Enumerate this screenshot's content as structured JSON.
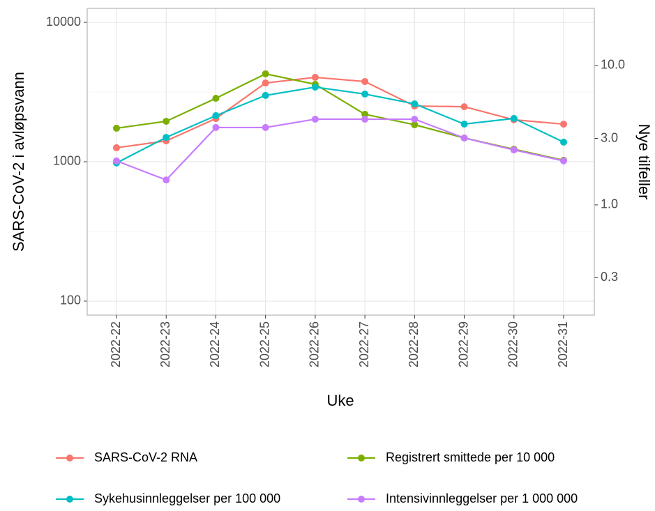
{
  "chart_data": {
    "type": "line",
    "y_label": "SARS-CoV-2 i avløpsvann",
    "y2_label": "Nye tilfeller",
    "x_label": "Uke",
    "categories": [
      "2022-22",
      "2022-23",
      "2022-24",
      "2022-25",
      "2022-26",
      "2022-27",
      "2022-28",
      "2022-29",
      "2022-30",
      "2022-31"
    ],
    "log_scale": true,
    "grid": true,
    "legend_position": "bottom",
    "ylim": [
      79.4,
      12590
    ],
    "yticks": [
      100,
      1000,
      10000
    ],
    "y2lim": [
      0.162,
      25.7
    ],
    "y2ticks": [
      {
        "value": 10,
        "label": "10.0"
      },
      {
        "value": 3,
        "label": "3.0"
      },
      {
        "value": 1,
        "label": "1.0"
      },
      0.3
    ],
    "series": [
      {
        "name": "SARS-CoV-2 RNA",
        "color": "#f8766d",
        "values": [
          1260,
          1410,
          2040,
          3670,
          4030,
          3760,
          2510,
          2480,
          2000,
          1860
        ]
      },
      {
        "name": "Registrert smittede per 10 000",
        "color": "#7cae00",
        "axis": "y2",
        "values": [
          3.55,
          3.98,
          5.82,
          8.71,
          7.33,
          4.47,
          3.76,
          3.02,
          2.51,
          2.09
        ]
      },
      {
        "name": "Sykehusinnleggelser per 100 000",
        "color": "#00bfc4",
        "axis": "y2",
        "values": [
          2.0,
          3.05,
          4.37,
          6.1,
          7.0,
          6.24,
          5.31,
          3.8,
          4.17,
          2.82
        ]
      },
      {
        "name": "Intensivinnleggelser per 1 000 000",
        "color": "#c77cff",
        "axis": "y2",
        "values": [
          2.07,
          1.51,
          3.59,
          3.59,
          4.12,
          4.12,
          4.12,
          3.02,
          2.48,
          2.07
        ]
      }
    ]
  }
}
